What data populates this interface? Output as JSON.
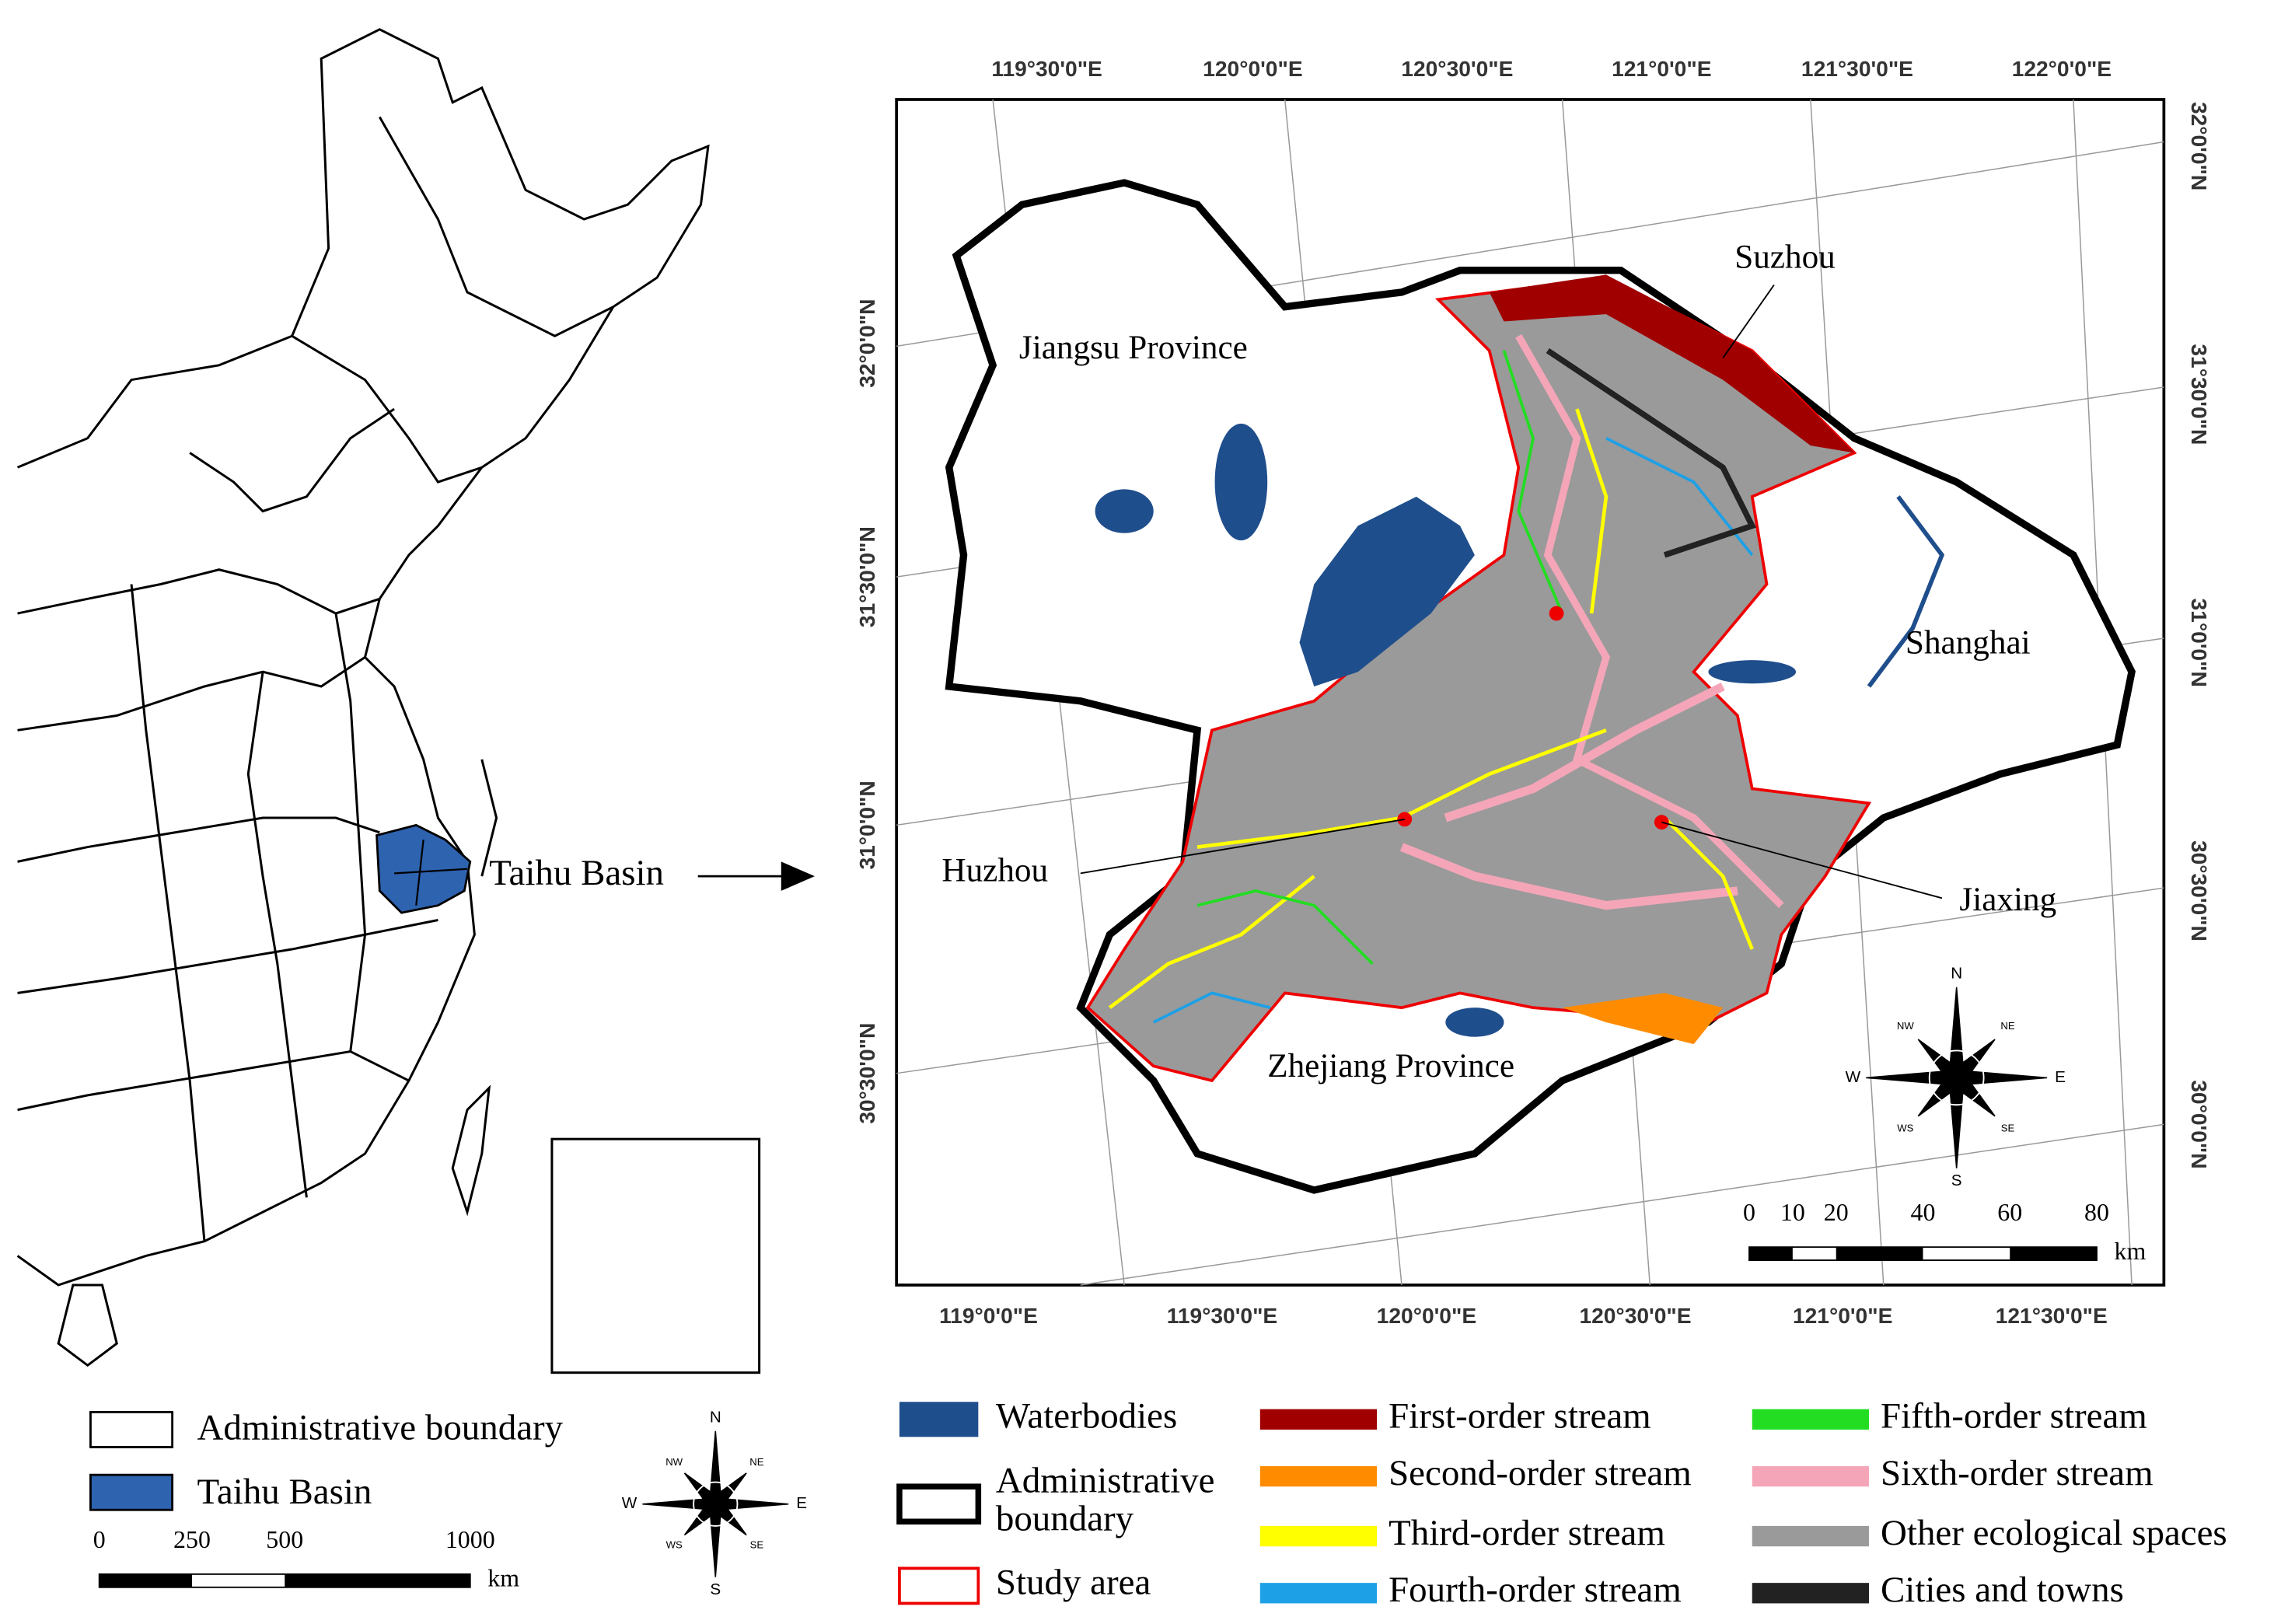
{
  "overview_map": {
    "callout": "Taihu Basin",
    "legend": [
      {
        "label": "Administrative boundary"
      },
      {
        "label": "Taihu Basin"
      }
    ],
    "scale": {
      "ticks": [
        0,
        250,
        500,
        1000
      ],
      "unit": "km"
    },
    "compass": [
      "N",
      "NE",
      "E",
      "SE",
      "S",
      "WS",
      "W",
      "NW"
    ]
  },
  "study_map": {
    "top_labels": [
      "119°30'0\"E",
      "120°0'0\"E",
      "120°30'0\"E",
      "121°0'0\"E",
      "121°30'0\"E",
      "122°0'0\"E"
    ],
    "bottom_labels": [
      "119°0'0\"E",
      "119°30'0\"E",
      "120°0'0\"E",
      "120°30'0\"E",
      "121°0'0\"E",
      "121°30'0\"E"
    ],
    "left_labels": [
      "32°0'0\"N",
      "31°30'0\"N",
      "31°0'0\"N",
      "30°30'0\"N"
    ],
    "right_labels": [
      "32°0'0\"N",
      "31°30'0\"N",
      "31°0'0\"N",
      "30°30'0\"N",
      "30°0'0\"N"
    ],
    "places": [
      "Jiangsu Province",
      "Suzhou",
      "Shanghai",
      "Huzhou",
      "Jiaxing",
      "Zhejiang Province"
    ],
    "scale": {
      "ticks": [
        0,
        10,
        20,
        40,
        60,
        80
      ],
      "unit": "km"
    },
    "compass": [
      "N",
      "NE",
      "E",
      "SE",
      "S",
      "WS",
      "W",
      "NW"
    ]
  },
  "legend": [
    {
      "label": "Waterbodies"
    },
    {
      "label": "Administrative boundary"
    },
    {
      "label": "Study area"
    },
    {
      "label": "First-order stream"
    },
    {
      "label": "Second-order stream"
    },
    {
      "label": "Third-order stream"
    },
    {
      "label": "Fourth-order stream"
    },
    {
      "label": "Fifth-order stream"
    },
    {
      "label": "Sixth-order stream"
    },
    {
      "label": "Other ecological spaces"
    },
    {
      "label": "Cities and towns"
    }
  ]
}
